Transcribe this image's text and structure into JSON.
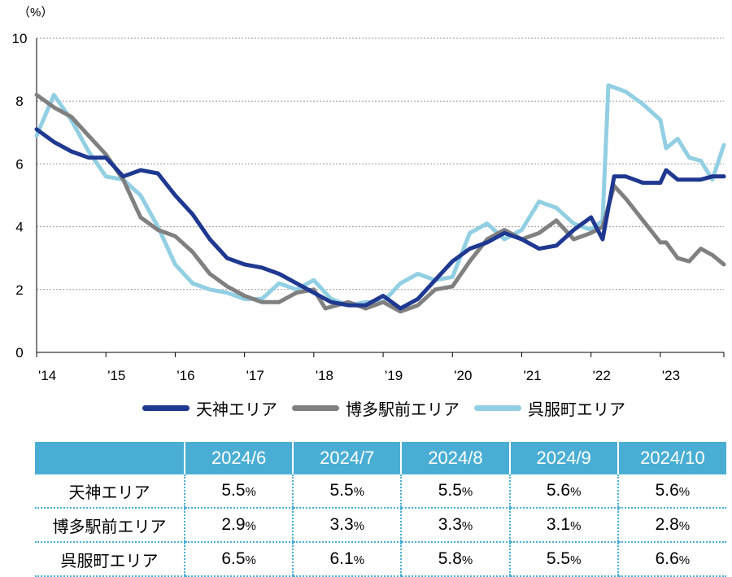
{
  "chart_data": {
    "type": "line",
    "unit_label": "（%）",
    "y_ticks": [
      "0",
      "2",
      "4",
      "6",
      "8",
      "10"
    ],
    "ylim": [
      0,
      10
    ],
    "x_tick_labels": [
      "'14",
      "'15",
      "'16",
      "'17",
      "'18",
      "'19",
      "'20",
      "'21",
      "'22",
      "'23"
    ],
    "x_tick_years": [
      2014,
      2015,
      2016,
      2017,
      2018,
      2019,
      2020,
      2021,
      2022,
      2023
    ],
    "xlim": [
      "2014-01",
      "2023-12"
    ],
    "grid": "horizontal dotted",
    "legend_position": "bottom",
    "series": [
      {
        "name": "天神エリア",
        "color": "#1f3890",
        "points": [
          [
            "2014-01",
            7.1
          ],
          [
            "2014-04",
            6.7
          ],
          [
            "2014-07",
            6.4
          ],
          [
            "2014-10",
            6.2
          ],
          [
            "2015-01",
            6.2
          ],
          [
            "2015-04",
            5.6
          ],
          [
            "2015-07",
            5.8
          ],
          [
            "2015-10",
            5.7
          ],
          [
            "2016-01",
            5.0
          ],
          [
            "2016-04",
            4.4
          ],
          [
            "2016-07",
            3.6
          ],
          [
            "2016-10",
            3.0
          ],
          [
            "2017-01",
            2.8
          ],
          [
            "2017-04",
            2.7
          ],
          [
            "2017-07",
            2.5
          ],
          [
            "2017-10",
            2.2
          ],
          [
            "2018-01",
            1.9
          ],
          [
            "2018-04",
            1.6
          ],
          [
            "2018-07",
            1.5
          ],
          [
            "2018-10",
            1.5
          ],
          [
            "2019-01",
            1.8
          ],
          [
            "2019-04",
            1.4
          ],
          [
            "2019-07",
            1.7
          ],
          [
            "2019-10",
            2.3
          ],
          [
            "2020-01",
            2.9
          ],
          [
            "2020-04",
            3.3
          ],
          [
            "2020-07",
            3.5
          ],
          [
            "2020-10",
            3.8
          ],
          [
            "2021-01",
            3.6
          ],
          [
            "2021-04",
            3.3
          ],
          [
            "2021-07",
            3.4
          ],
          [
            "2021-10",
            3.9
          ],
          [
            "2022-01",
            4.3
          ],
          [
            "2022-03",
            3.6
          ],
          [
            "2022-05",
            5.6
          ],
          [
            "2022-07",
            5.6
          ],
          [
            "2022-10",
            5.4
          ],
          [
            "2023-01",
            5.4
          ],
          [
            "2023-02",
            5.8
          ],
          [
            "2023-04",
            5.5
          ],
          [
            "2023-06",
            5.5
          ],
          [
            "2023-08",
            5.5
          ],
          [
            "2023-10",
            5.6
          ],
          [
            "2023-12",
            5.6
          ]
        ]
      },
      {
        "name": "博多駅前エリア",
        "color": "#808080",
        "points": [
          [
            "2014-01",
            8.2
          ],
          [
            "2014-04",
            7.8
          ],
          [
            "2014-07",
            7.5
          ],
          [
            "2014-10",
            6.9
          ],
          [
            "2015-01",
            6.3
          ],
          [
            "2015-04",
            5.5
          ],
          [
            "2015-07",
            4.3
          ],
          [
            "2015-10",
            3.9
          ],
          [
            "2016-01",
            3.7
          ],
          [
            "2016-04",
            3.2
          ],
          [
            "2016-07",
            2.5
          ],
          [
            "2016-10",
            2.1
          ],
          [
            "2017-01",
            1.8
          ],
          [
            "2017-04",
            1.6
          ],
          [
            "2017-07",
            1.6
          ],
          [
            "2017-10",
            1.9
          ],
          [
            "2018-01",
            2.0
          ],
          [
            "2018-03",
            1.4
          ],
          [
            "2018-07",
            1.6
          ],
          [
            "2018-10",
            1.4
          ],
          [
            "2019-01",
            1.6
          ],
          [
            "2019-04",
            1.3
          ],
          [
            "2019-07",
            1.5
          ],
          [
            "2019-10",
            2.0
          ],
          [
            "2020-01",
            2.1
          ],
          [
            "2020-04",
            2.9
          ],
          [
            "2020-07",
            3.6
          ],
          [
            "2020-10",
            3.9
          ],
          [
            "2021-01",
            3.6
          ],
          [
            "2021-04",
            3.8
          ],
          [
            "2021-07",
            4.2
          ],
          [
            "2021-10",
            3.6
          ],
          [
            "2022-01",
            3.8
          ],
          [
            "2022-03",
            4.0
          ],
          [
            "2022-05",
            5.3
          ],
          [
            "2022-07",
            4.9
          ],
          [
            "2022-10",
            4.2
          ],
          [
            "2023-01",
            3.5
          ],
          [
            "2023-02",
            3.5
          ],
          [
            "2023-04",
            3.0
          ],
          [
            "2023-06",
            2.9
          ],
          [
            "2023-08",
            3.3
          ],
          [
            "2023-10",
            3.1
          ],
          [
            "2023-12",
            2.8
          ]
        ]
      },
      {
        "name": "呉服町エリア",
        "color": "#92cfe3",
        "points": [
          [
            "2014-01",
            6.9
          ],
          [
            "2014-04",
            8.2
          ],
          [
            "2014-07",
            7.4
          ],
          [
            "2014-10",
            6.4
          ],
          [
            "2015-01",
            5.6
          ],
          [
            "2015-04",
            5.5
          ],
          [
            "2015-07",
            5.0
          ],
          [
            "2015-10",
            4.0
          ],
          [
            "2016-01",
            2.8
          ],
          [
            "2016-04",
            2.2
          ],
          [
            "2016-07",
            2.0
          ],
          [
            "2016-10",
            1.9
          ],
          [
            "2017-01",
            1.7
          ],
          [
            "2017-04",
            1.7
          ],
          [
            "2017-07",
            2.2
          ],
          [
            "2017-10",
            2.0
          ],
          [
            "2018-01",
            2.3
          ],
          [
            "2018-04",
            1.7
          ],
          [
            "2018-07",
            1.5
          ],
          [
            "2018-10",
            1.6
          ],
          [
            "2019-01",
            1.6
          ],
          [
            "2019-04",
            2.2
          ],
          [
            "2019-07",
            2.5
          ],
          [
            "2019-10",
            2.3
          ],
          [
            "2020-01",
            2.4
          ],
          [
            "2020-04",
            3.8
          ],
          [
            "2020-07",
            4.1
          ],
          [
            "2020-10",
            3.6
          ],
          [
            "2021-01",
            3.9
          ],
          [
            "2021-04",
            4.8
          ],
          [
            "2021-07",
            4.6
          ],
          [
            "2021-10",
            4.1
          ],
          [
            "2022-01",
            3.9
          ],
          [
            "2022-03",
            4.2
          ],
          [
            "2022-04",
            8.5
          ],
          [
            "2022-07",
            8.3
          ],
          [
            "2022-10",
            7.9
          ],
          [
            "2023-01",
            7.4
          ],
          [
            "2023-02",
            6.5
          ],
          [
            "2023-04",
            6.8
          ],
          [
            "2023-06",
            6.2
          ],
          [
            "2023-08",
            6.1
          ],
          [
            "2023-10",
            5.5
          ],
          [
            "2023-12",
            6.6
          ]
        ]
      }
    ]
  },
  "table": {
    "headers": [
      "",
      "2024/6",
      "2024/7",
      "2024/8",
      "2024/9",
      "2024/10"
    ],
    "rows": [
      {
        "label": "天神エリア",
        "values": [
          "5.5",
          "5.5",
          "5.5",
          "5.6",
          "5.6"
        ]
      },
      {
        "label": "博多駅前エリア",
        "values": [
          "2.9",
          "3.3",
          "3.3",
          "3.1",
          "2.8"
        ]
      },
      {
        "label": "呉服町エリア",
        "values": [
          "6.5",
          "6.1",
          "5.8",
          "5.5",
          "6.6"
        ]
      }
    ],
    "unit": "%"
  }
}
